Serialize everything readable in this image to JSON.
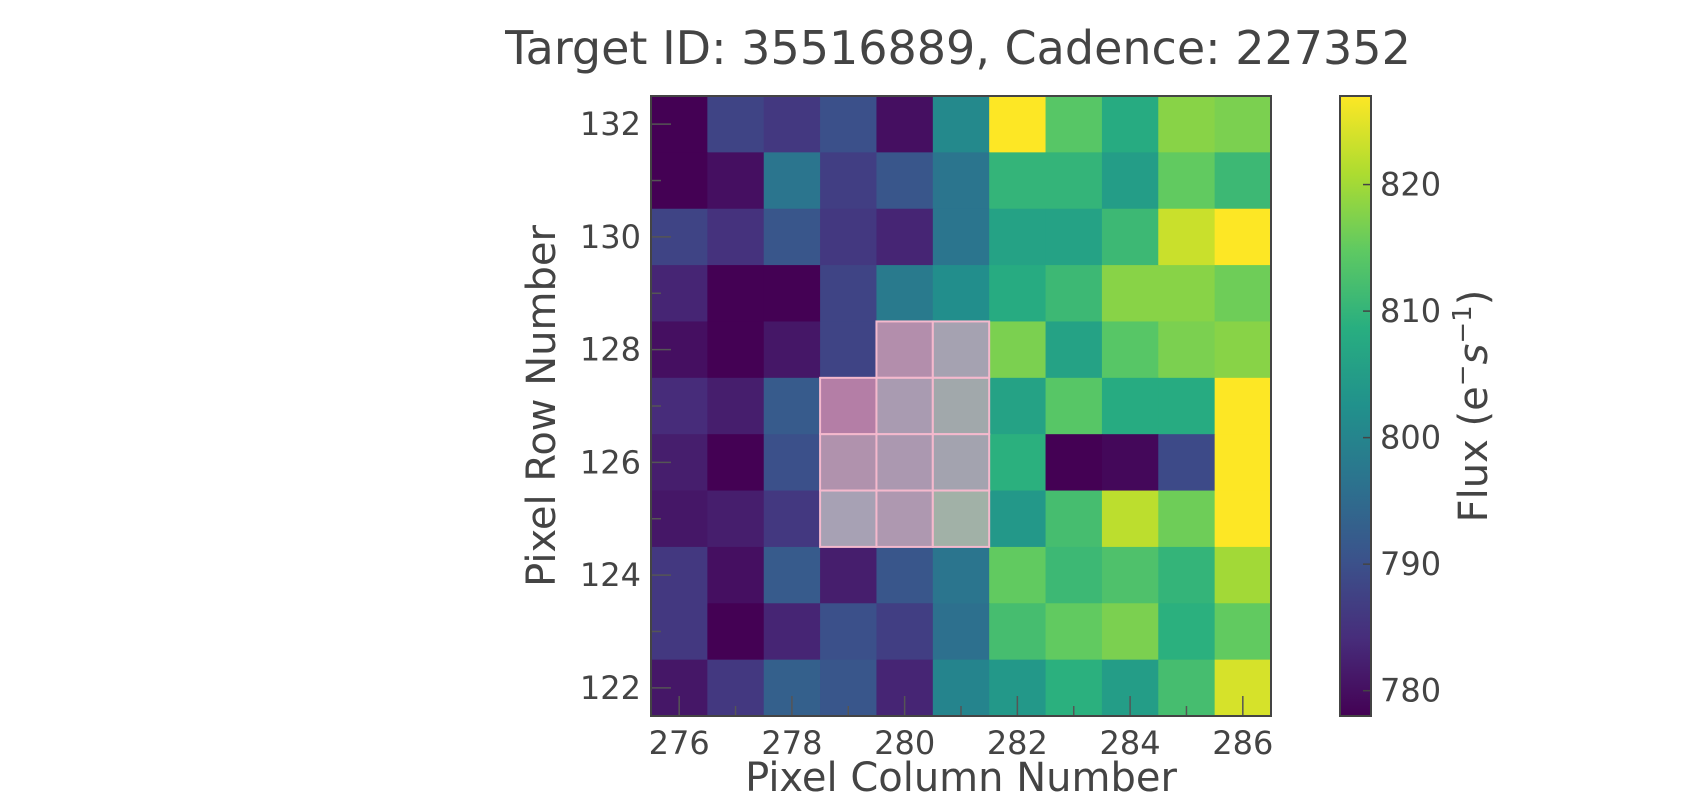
{
  "chart_data": {
    "type": "heatmap",
    "title": "Target ID: 35516889, Cadence: 227352",
    "xlabel": "Pixel Column Number",
    "ylabel": "Pixel Row Number",
    "colorbar_label": "Flux ($e^{-}s^{-1}$)",
    "colorbar_label_parts": {
      "text": "Flux (e",
      "sup1": "−",
      "mid": "s",
      "sup2": "−1",
      "close": ")"
    },
    "colormap": "viridis",
    "x": [
      276,
      277,
      278,
      279,
      280,
      281,
      282,
      283,
      284,
      285,
      286
    ],
    "y": [
      132,
      131,
      130,
      129,
      128,
      127,
      126,
      125,
      124,
      123,
      122
    ],
    "xlim": [
      275.5,
      286.5
    ],
    "ylim": [
      121.5,
      132.5
    ],
    "xticks": [
      276,
      278,
      280,
      282,
      284,
      286
    ],
    "yticks": [
      122,
      124,
      126,
      128,
      130,
      132
    ],
    "color_range": [
      778,
      827
    ],
    "colorbar_ticks": [
      780,
      790,
      800,
      810,
      820
    ],
    "values": [
      [
        778,
        788,
        786,
        790,
        780,
        801,
        827,
        814,
        808,
        818,
        817
      ],
      [
        778,
        780,
        797,
        787,
        791,
        797,
        810,
        810,
        805,
        815,
        811
      ],
      [
        788,
        785,
        791,
        786,
        783,
        797,
        806,
        806,
        811,
        823,
        827
      ],
      [
        783,
        778,
        778,
        788,
        798,
        802,
        808,
        811,
        818,
        818,
        816
      ],
      [
        780,
        778,
        781,
        788,
        780,
        780,
        817,
        806,
        814,
        817,
        818
      ],
      [
        784,
        782,
        792,
        784,
        780,
        780,
        806,
        814,
        808,
        808,
        827
      ],
      [
        782,
        778,
        790,
        784,
        780,
        780,
        809,
        778,
        779,
        789,
        827
      ],
      [
        781,
        782,
        786,
        780,
        780,
        780,
        804,
        812,
        822,
        816,
        827
      ],
      [
        786,
        780,
        792,
        782,
        791,
        797,
        815,
        811,
        813,
        810,
        820
      ],
      [
        786,
        778,
        783,
        790,
        787,
        796,
        812,
        815,
        817,
        809,
        815
      ],
      [
        781,
        786,
        793,
        791,
        783,
        800,
        804,
        809,
        805,
        812,
        824
      ]
    ],
    "aperture_mask": [
      [
        128,
        280
      ],
      [
        128,
        281
      ],
      [
        127,
        279
      ],
      [
        127,
        280
      ],
      [
        127,
        281
      ],
      [
        126,
        279
      ],
      [
        126,
        280
      ],
      [
        126,
        281
      ],
      [
        125,
        279
      ],
      [
        125,
        280
      ],
      [
        125,
        281
      ]
    ],
    "aperture_overlay_colors": {
      "128,280": "#b38eac",
      "128,281": "#a5a2b1",
      "127,279": "#b47ea6",
      "127,280": "#a99bb1",
      "127,281": "#a1a8ab",
      "126,279": "#b092ad",
      "126,280": "#ab98b0",
      "126,281": "#a3a3af",
      "125,279": "#a7a1b4",
      "125,280": "#ae98b0",
      "125,281": "#a1b1a7"
    },
    "aperture_edge_color": "#f4b9cd",
    "grid": false
  }
}
